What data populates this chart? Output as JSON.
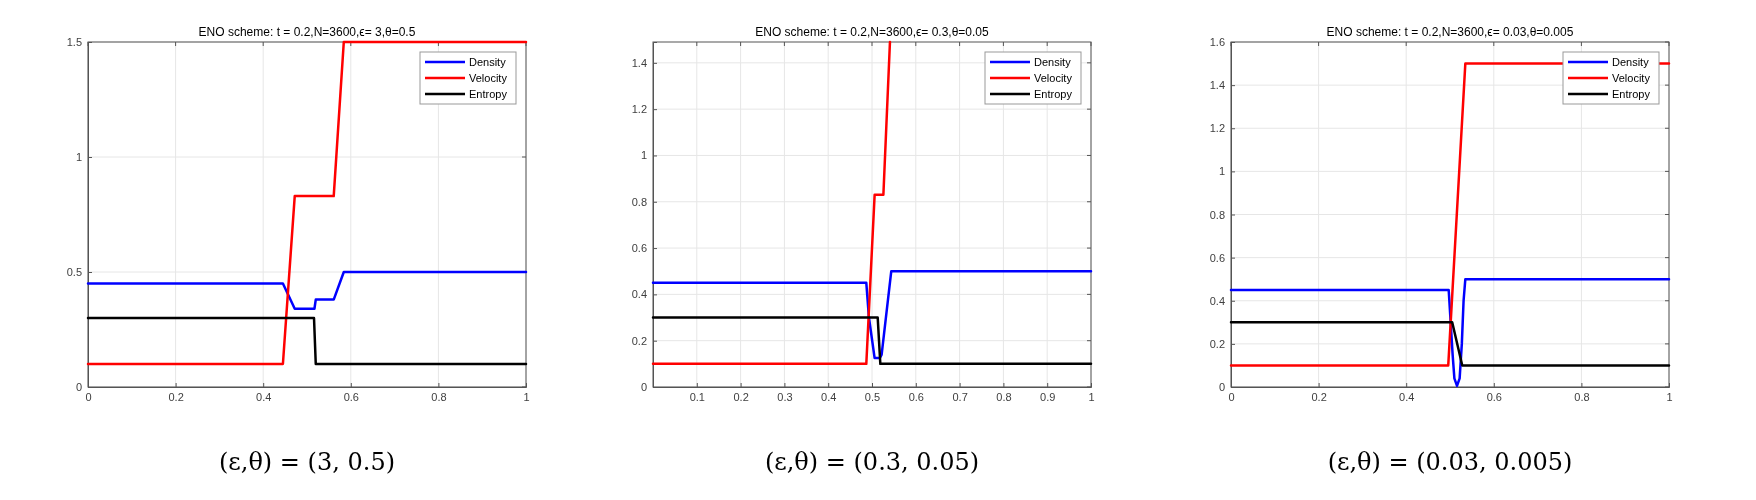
{
  "chart_data": [
    {
      "type": "line",
      "title": "ENO scheme:  t = 0.2,N=3600,ϵ= 3,θ=0.5",
      "xlim": [
        0,
        1
      ],
      "xticks": [
        0,
        0.2,
        0.4,
        0.6,
        0.8,
        1
      ],
      "ylim": [
        0,
        1.5
      ],
      "yticks": [
        0,
        0.5,
        1,
        1.5
      ],
      "grid": true,
      "legend": "top right",
      "annotations": [
        "(ε,θ) = (3, 0.5)"
      ],
      "series": [
        {
          "name": "Density",
          "color": "#0000ff",
          "x": [
            0,
            0.445,
            0.472,
            0.517,
            0.52,
            0.561,
            0.584,
            1
          ],
          "values": [
            0.45,
            0.45,
            0.34,
            0.34,
            0.38,
            0.38,
            0.5,
            0.5
          ]
        },
        {
          "name": "Velocity",
          "color": "#ff0000",
          "x": [
            0,
            0.445,
            0.472,
            0.561,
            0.584,
            1
          ],
          "values": [
            0.1,
            0.1,
            0.83,
            0.83,
            1.5,
            1.5
          ]
        },
        {
          "name": "Entropy",
          "color": "#000000",
          "x": [
            0,
            0.516,
            0.52,
            1
          ],
          "values": [
            0.3,
            0.3,
            0.1,
            0.1
          ]
        }
      ]
    },
    {
      "type": "line",
      "title": "ENO scheme:  t = 0.2,N=3600,ϵ= 0.3,θ=0.05",
      "xlim": [
        0,
        1
      ],
      "xticks": [
        0.1,
        0.2,
        0.3,
        0.4,
        0.5,
        0.6,
        0.7,
        0.8,
        0.9,
        1
      ],
      "ylim": [
        0,
        1.49
      ],
      "yticks": [
        0,
        0.2,
        0.4,
        0.6,
        0.8,
        1,
        1.2,
        1.4
      ],
      "grid": true,
      "legend": "top right",
      "annotations": [
        "(ε,θ) = (0.3, 0.05)"
      ],
      "series": [
        {
          "name": "Density",
          "color": "#0000ff",
          "x": [
            0,
            0.487,
            0.493,
            0.506,
            0.518,
            0.522,
            0.544,
            1
          ],
          "values": [
            0.45,
            0.45,
            0.3,
            0.125,
            0.125,
            0.14,
            0.5,
            0.5
          ]
        },
        {
          "name": "Velocity",
          "color": "#ff0000",
          "x": [
            0,
            0.487,
            0.506,
            0.526,
            0.541
          ],
          "values": [
            0.1,
            0.1,
            0.83,
            0.83,
            1.49
          ]
        },
        {
          "name": "Entropy",
          "color": "#000000",
          "x": [
            0,
            0.513,
            0.519,
            1
          ],
          "values": [
            0.3,
            0.3,
            0.1,
            0.1
          ]
        }
      ]
    },
    {
      "type": "line",
      "title": "ENO scheme:  t = 0.2,N=3600,ϵ= 0.03,θ=0.005",
      "xlim": [
        0,
        1
      ],
      "xticks": [
        0,
        0.2,
        0.4,
        0.6,
        0.8,
        1
      ],
      "ylim": [
        0,
        1.6
      ],
      "yticks": [
        0,
        0.2,
        0.4,
        0.6,
        0.8,
        1,
        1.2,
        1.4,
        1.6
      ],
      "grid": true,
      "legend": "top right",
      "annotations": [
        "(ε,θ) = (0.03, 0.005)"
      ],
      "series": [
        {
          "name": "Density",
          "color": "#0000ff",
          "x": [
            0,
            0.497,
            0.506,
            0.51,
            0.516,
            0.522,
            0.527,
            0.531,
            0.535,
            1
          ],
          "values": [
            0.45,
            0.45,
            0.15,
            0.04,
            0.005,
            0.04,
            0.2,
            0.4,
            0.5,
            0.5
          ]
        },
        {
          "name": "Velocity",
          "color": "#ff0000",
          "x": [
            0,
            0.496,
            0.535,
            1
          ],
          "values": [
            0.1,
            0.1,
            1.5,
            1.5
          ]
        },
        {
          "name": "Entropy",
          "color": "#000000",
          "x": [
            0,
            0.505,
            0.528,
            1
          ],
          "values": [
            0.3,
            0.3,
            0.1,
            0.1
          ]
        }
      ]
    }
  ]
}
